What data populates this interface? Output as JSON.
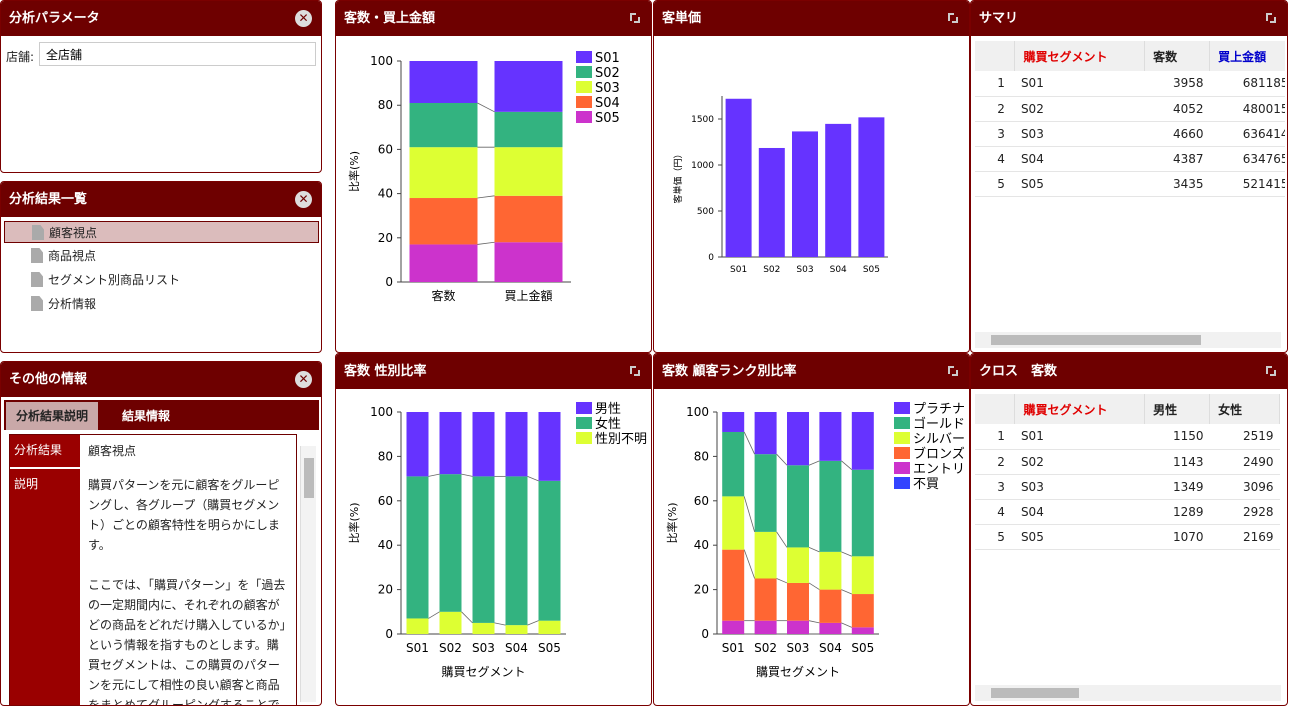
{
  "params": {
    "title": "分析パラメータ",
    "store_label": "店舗:",
    "store_value": "全店舗"
  },
  "results": {
    "title": "分析結果一覧",
    "items": [
      "顧客視点",
      "商品視点",
      "セグメント別商品リスト",
      "分析情報"
    ]
  },
  "other": {
    "title": "その他の情報",
    "tabs": [
      "分析結果説明",
      "結果情報"
    ],
    "result_key": "分析結果",
    "result_val": "顧客視点",
    "desc_key": "説明",
    "desc_val": "購買パターンを元に顧客をグルーピングし、各グループ（購買セグメント）ごとの顧客特性を明らかにします。\n\nここでは、「購買パターン」を「過去の一定期間内に、それぞれの顧客がどの商品をどれだけ購入しているか」という情報を指すものとします。購買セグメントは、この購買のパターンを元にして相性の良い顧客と商品をまとめてグルーピングすることで得られま"
  },
  "icons": {
    "close": "close-icon",
    "expand": "expand-icon",
    "file": "file-icon"
  },
  "colors": {
    "header": "#6e0000",
    "s01": "#6633ff",
    "s02": "#33b380",
    "s03": "#ddff33",
    "s04": "#ff6633",
    "s05": "#cc33cc",
    "s06": "#3344ff"
  },
  "chart1": {
    "title": "客数・買上金額",
    "ylabel": "比率(%)"
  },
  "chart2": {
    "title": "客単価",
    "ylabel": "客単価（円）"
  },
  "chart3": {
    "title": "客数 性別比率",
    "ylabel": "比率(%)",
    "xlabel": "購買セグメント"
  },
  "chart4": {
    "title": "客数 顧客ランク別比率",
    "ylabel": "比率(%)",
    "xlabel": "購買セグメント"
  },
  "summary": {
    "title": "サマリ",
    "headers": [
      "購買セグメント",
      "客数",
      "買上金額"
    ],
    "rows": [
      [
        "1",
        "S01",
        "3958",
        "681185"
      ],
      [
        "2",
        "S02",
        "4052",
        "480015"
      ],
      [
        "3",
        "S03",
        "4660",
        "636414"
      ],
      [
        "4",
        "S04",
        "4387",
        "634765"
      ],
      [
        "5",
        "S05",
        "3435",
        "521415"
      ]
    ]
  },
  "cross": {
    "title": "クロス　客数",
    "headers": [
      "購買セグメント",
      "男性",
      "女性"
    ],
    "rows": [
      [
        "1",
        "S01",
        "1150",
        "2519"
      ],
      [
        "2",
        "S02",
        "1143",
        "2490"
      ],
      [
        "3",
        "S03",
        "1349",
        "3096"
      ],
      [
        "4",
        "S04",
        "1289",
        "2928"
      ],
      [
        "5",
        "S05",
        "1070",
        "2169"
      ]
    ]
  },
  "chart_data": [
    {
      "type": "bar",
      "stacked": true,
      "title": "客数・買上金額",
      "ylabel": "比率(%)",
      "ylim": [
        0,
        100
      ],
      "categories": [
        "客数",
        "買上金額"
      ],
      "series": [
        {
          "name": "S05",
          "values": [
            17,
            18
          ]
        },
        {
          "name": "S04",
          "values": [
            21,
            21
          ]
        },
        {
          "name": "S03",
          "values": [
            23,
            22
          ]
        },
        {
          "name": "S02",
          "values": [
            20,
            16
          ]
        },
        {
          "name": "S01",
          "values": [
            19,
            23
          ]
        }
      ],
      "legend": "top-right"
    },
    {
      "type": "bar",
      "title": "客単価",
      "ylabel": "客単価（円）",
      "ylim": [
        0,
        1750
      ],
      "yticks": [
        0,
        500,
        1000,
        1500
      ],
      "categories": [
        "S01",
        "S02",
        "S03",
        "S04",
        "S05"
      ],
      "values": [
        1720,
        1185,
        1365,
        1447,
        1518
      ]
    },
    {
      "type": "bar",
      "stacked": true,
      "title": "客数 性別比率",
      "ylabel": "比率(%)",
      "xlabel": "購買セグメント",
      "ylim": [
        0,
        100
      ],
      "categories": [
        "S01",
        "S02",
        "S03",
        "S04",
        "S05"
      ],
      "series": [
        {
          "name": "性別不明",
          "values": [
            7,
            10,
            5,
            4,
            6
          ]
        },
        {
          "name": "女性",
          "values": [
            64,
            62,
            66,
            67,
            63
          ]
        },
        {
          "name": "男性",
          "values": [
            29,
            28,
            29,
            29,
            31
          ]
        }
      ],
      "legend": "top-right"
    },
    {
      "type": "bar",
      "stacked": true,
      "title": "客数 顧客ランク別比率",
      "ylabel": "比率(%)",
      "xlabel": "購買セグメント",
      "ylim": [
        0,
        100
      ],
      "categories": [
        "S01",
        "S02",
        "S03",
        "S04",
        "S05"
      ],
      "series": [
        {
          "name": "不買",
          "values": [
            0,
            0,
            0,
            0,
            0
          ]
        },
        {
          "name": "エントリ",
          "values": [
            6,
            6,
            6,
            5,
            3
          ]
        },
        {
          "name": "ブロンズ",
          "values": [
            32,
            19,
            17,
            15,
            15
          ]
        },
        {
          "name": "シルバー",
          "values": [
            24,
            21,
            16,
            17,
            17
          ]
        },
        {
          "name": "ゴールド",
          "values": [
            29,
            35,
            37,
            41,
            39
          ]
        },
        {
          "name": "プラチナ",
          "values": [
            9,
            19,
            24,
            22,
            26
          ]
        }
      ],
      "legend": "top-right"
    }
  ]
}
